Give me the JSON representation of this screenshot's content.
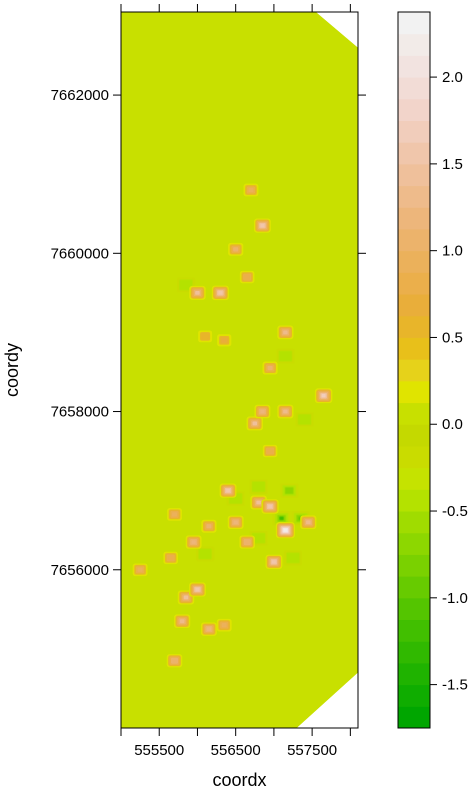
{
  "chart_data": {
    "type": "heatmap",
    "xlabel": "coordx",
    "ylabel": "coordy",
    "xlim": [
      555000,
      558100
    ],
    "ylim": [
      7654000,
      7663050
    ],
    "x_ticks": [
      555500,
      556500,
      557500
    ],
    "x_tick_positions": [
      555000,
      555500,
      556000,
      556500,
      557000,
      557500,
      558000
    ],
    "y_ticks": [
      7656000,
      7658000,
      7660000,
      7662000
    ],
    "y_tick_labels": [
      "7656000",
      "7658000",
      "7660000",
      "7662000"
    ],
    "x_tick_labels": [
      "555500",
      "556500",
      "557500"
    ],
    "domain_polygon": [
      [
        555000,
        7654000
      ],
      [
        557300,
        7654000
      ],
      [
        558100,
        7654700
      ],
      [
        558100,
        7662600
      ],
      [
        557550,
        7663050
      ],
      [
        555000,
        7663050
      ]
    ],
    "background_value": 0.0,
    "colorbar": {
      "breaks": [
        -1.75,
        -1.625,
        -1.5,
        -1.375,
        -1.25,
        -1.125,
        -1.0,
        -0.875,
        -0.75,
        -0.625,
        -0.5,
        -0.375,
        -0.25,
        -0.125,
        0.0,
        0.125,
        0.25,
        0.375,
        0.5,
        0.625,
        0.75,
        0.875,
        1.0,
        1.125,
        1.25,
        1.375,
        1.5,
        1.625,
        1.75,
        1.875,
        2.0,
        2.125,
        2.25,
        2.375
      ],
      "colors": [
        "#00a600",
        "#0fad00",
        "#1fb300",
        "#30b900",
        "#41bf00",
        "#54c500",
        "#67cb00",
        "#7ad100",
        "#8dd700",
        "#a0dc00",
        "#b4e200",
        "#c5e300",
        "#c9dc00",
        "#c4d900",
        "#c8e000",
        "#e0e400",
        "#e6d21a",
        "#e8c01a",
        "#e8b52a",
        "#e9ae3a",
        "#ebaf4b",
        "#ebb15b",
        "#ecb36b",
        "#edb67b",
        "#eebb8b",
        "#efc09b",
        "#f0c6ab",
        "#f1cdbb",
        "#f2d4ca",
        "#f2dcd6",
        "#f2e3e0",
        "#f2ebe8",
        "#f2f2f2"
      ],
      "tick_values": [
        -1.5,
        -1.0,
        -0.5,
        0.0,
        0.5,
        1.0,
        1.5,
        2.0
      ],
      "tick_labels": [
        "-1.5",
        "-1.0",
        "-0.5",
        "0.0",
        "0.5",
        "1.0",
        "1.5",
        "2.0"
      ]
    },
    "hotspots": [
      {
        "x": 556000,
        "y": 7659500,
        "v": 1.4
      },
      {
        "x": 556300,
        "y": 7659500,
        "v": 1.6
      },
      {
        "x": 556850,
        "y": 7660350,
        "v": 1.5
      },
      {
        "x": 556700,
        "y": 7660800,
        "v": 0.9
      },
      {
        "x": 557150,
        "y": 7659000,
        "v": 1.3
      },
      {
        "x": 556350,
        "y": 7658900,
        "v": 0.7
      },
      {
        "x": 556100,
        "y": 7658950,
        "v": 0.6
      },
      {
        "x": 556950,
        "y": 7658550,
        "v": 1.0
      },
      {
        "x": 556750,
        "y": 7657850,
        "v": 1.4
      },
      {
        "x": 556850,
        "y": 7658000,
        "v": 1.2
      },
      {
        "x": 557150,
        "y": 7658000,
        "v": 1.3
      },
      {
        "x": 557650,
        "y": 7658200,
        "v": 1.7
      },
      {
        "x": 556950,
        "y": 7657500,
        "v": 0.8
      },
      {
        "x": 556400,
        "y": 7657000,
        "v": 1.5
      },
      {
        "x": 556500,
        "y": 7656600,
        "v": 1.2
      },
      {
        "x": 556800,
        "y": 7656850,
        "v": 1.4
      },
      {
        "x": 557150,
        "y": 7656500,
        "v": 2.2
      },
      {
        "x": 556950,
        "y": 7656800,
        "v": 1.6
      },
      {
        "x": 557450,
        "y": 7656600,
        "v": 1.3
      },
      {
        "x": 556150,
        "y": 7656550,
        "v": 1.0
      },
      {
        "x": 555700,
        "y": 7656700,
        "v": 0.9
      },
      {
        "x": 555950,
        "y": 7656350,
        "v": 1.2
      },
      {
        "x": 556650,
        "y": 7656350,
        "v": 1.1
      },
      {
        "x": 557000,
        "y": 7656100,
        "v": 1.5
      },
      {
        "x": 555650,
        "y": 7656150,
        "v": 0.8
      },
      {
        "x": 555850,
        "y": 7655650,
        "v": 1.4
      },
      {
        "x": 556000,
        "y": 7655750,
        "v": 1.5
      },
      {
        "x": 555800,
        "y": 7655350,
        "v": 1.3
      },
      {
        "x": 556150,
        "y": 7655250,
        "v": 1.2
      },
      {
        "x": 556350,
        "y": 7655300,
        "v": 0.9
      },
      {
        "x": 555700,
        "y": 7654850,
        "v": 1.1
      },
      {
        "x": 555250,
        "y": 7656000,
        "v": 0.9
      },
      {
        "x": 556500,
        "y": 7660050,
        "v": 1.0
      },
      {
        "x": 556650,
        "y": 7659700,
        "v": 0.8
      }
    ],
    "coldspots": [
      {
        "x": 555850,
        "y": 7659600,
        "v": -0.5
      },
      {
        "x": 557150,
        "y": 7658700,
        "v": -0.6
      },
      {
        "x": 557200,
        "y": 7657000,
        "v": -0.7
      },
      {
        "x": 556500,
        "y": 7656900,
        "v": -0.5
      },
      {
        "x": 557350,
        "y": 7656650,
        "v": -1.1
      },
      {
        "x": 557100,
        "y": 7656650,
        "v": -1.3
      },
      {
        "x": 557250,
        "y": 7656150,
        "v": -0.6
      },
      {
        "x": 556800,
        "y": 7656400,
        "v": -0.6
      },
      {
        "x": 556800,
        "y": 7657050,
        "v": -0.6
      },
      {
        "x": 556100,
        "y": 7656200,
        "v": -0.5
      },
      {
        "x": 557400,
        "y": 7657900,
        "v": -0.5
      }
    ]
  }
}
